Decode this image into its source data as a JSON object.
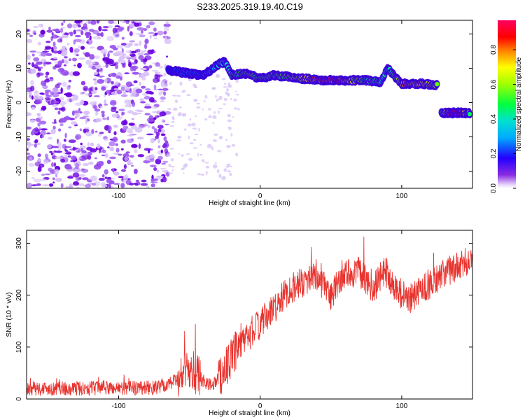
{
  "title": "S233.2025.319.19.40.C19",
  "chart_data": [
    {
      "type": "heatmap",
      "name": "spectrogram",
      "xlabel": "Height of straight line (km)",
      "ylabel": "Frequency (Hz)",
      "xlim": [
        -165,
        150
      ],
      "ylim": [
        -25,
        24
      ],
      "xticks": [
        -100,
        0,
        100
      ],
      "yticks": [
        -20,
        -10,
        0,
        10,
        20
      ],
      "colorbar": {
        "label": "Normalized spectral amplitude",
        "range": [
          0.0,
          0.97
        ],
        "ticks": [
          0.0,
          0.2,
          0.4,
          0.6,
          0.8
        ],
        "tick_labels": [
          "0.0",
          "0.2",
          "0.4",
          "0.6",
          "0.8"
        ]
      },
      "ridge": [
        {
          "x": -65,
          "y": 9.5,
          "a": 0.15
        },
        {
          "x": -50,
          "y": 8.5,
          "a": 0.2
        },
        {
          "x": -40,
          "y": 8,
          "a": 0.2
        },
        {
          "x": -30,
          "y": 11,
          "a": 0.3
        },
        {
          "x": -25,
          "y": 12,
          "a": 0.35
        },
        {
          "x": -20,
          "y": 8,
          "a": 0.45
        },
        {
          "x": -10,
          "y": 8.5,
          "a": 0.6
        },
        {
          "x": 0,
          "y": 7,
          "a": 0.55
        },
        {
          "x": 10,
          "y": 8,
          "a": 0.55
        },
        {
          "x": 20,
          "y": 7.5,
          "a": 0.6
        },
        {
          "x": 30,
          "y": 7,
          "a": 0.75
        },
        {
          "x": 45,
          "y": 6.5,
          "a": 0.95
        },
        {
          "x": 60,
          "y": 6.5,
          "a": 0.85
        },
        {
          "x": 75,
          "y": 6.5,
          "a": 0.5
        },
        {
          "x": 85,
          "y": 6,
          "a": 0.45
        },
        {
          "x": 90,
          "y": 10,
          "a": 0.35
        },
        {
          "x": 100,
          "y": 5.5,
          "a": 0.8
        },
        {
          "x": 115,
          "y": 5.5,
          "a": 0.85
        },
        {
          "x": 125,
          "y": 5,
          "a": 0.6
        },
        {
          "x": 130,
          "y": -3,
          "a": 0.6
        },
        {
          "x": 140,
          "y": -3,
          "a": 0.85
        },
        {
          "x": 148,
          "y": -3,
          "a": 0.5
        }
      ]
    },
    {
      "type": "line",
      "name": "snr",
      "xlabel": "Height of straight line (km)",
      "ylabel": "SNR (10 * v/v)",
      "xlim": [
        -165,
        150
      ],
      "ylim": [
        0,
        325
      ],
      "xticks": [
        -100,
        0,
        100
      ],
      "yticks": [
        0,
        100,
        200,
        300
      ],
      "color": "#e8332e",
      "trend": [
        {
          "x": -165,
          "y": 20
        },
        {
          "x": -70,
          "y": 22
        },
        {
          "x": -60,
          "y": 35
        },
        {
          "x": -50,
          "y": 60
        },
        {
          "x": -44,
          "y": 45
        },
        {
          "x": -35,
          "y": 25
        },
        {
          "x": -28,
          "y": 45
        },
        {
          "x": -20,
          "y": 80
        },
        {
          "x": -12,
          "y": 110
        },
        {
          "x": -5,
          "y": 130
        },
        {
          "x": 0,
          "y": 145
        },
        {
          "x": 10,
          "y": 175
        },
        {
          "x": 20,
          "y": 210
        },
        {
          "x": 30,
          "y": 225
        },
        {
          "x": 40,
          "y": 240
        },
        {
          "x": 45,
          "y": 215
        },
        {
          "x": 50,
          "y": 195
        },
        {
          "x": 58,
          "y": 240
        },
        {
          "x": 70,
          "y": 245
        },
        {
          "x": 80,
          "y": 210
        },
        {
          "x": 88,
          "y": 250
        },
        {
          "x": 95,
          "y": 215
        },
        {
          "x": 105,
          "y": 190
        },
        {
          "x": 115,
          "y": 215
        },
        {
          "x": 125,
          "y": 230
        },
        {
          "x": 135,
          "y": 250
        },
        {
          "x": 142,
          "y": 255
        },
        {
          "x": 150,
          "y": 275
        }
      ]
    }
  ]
}
